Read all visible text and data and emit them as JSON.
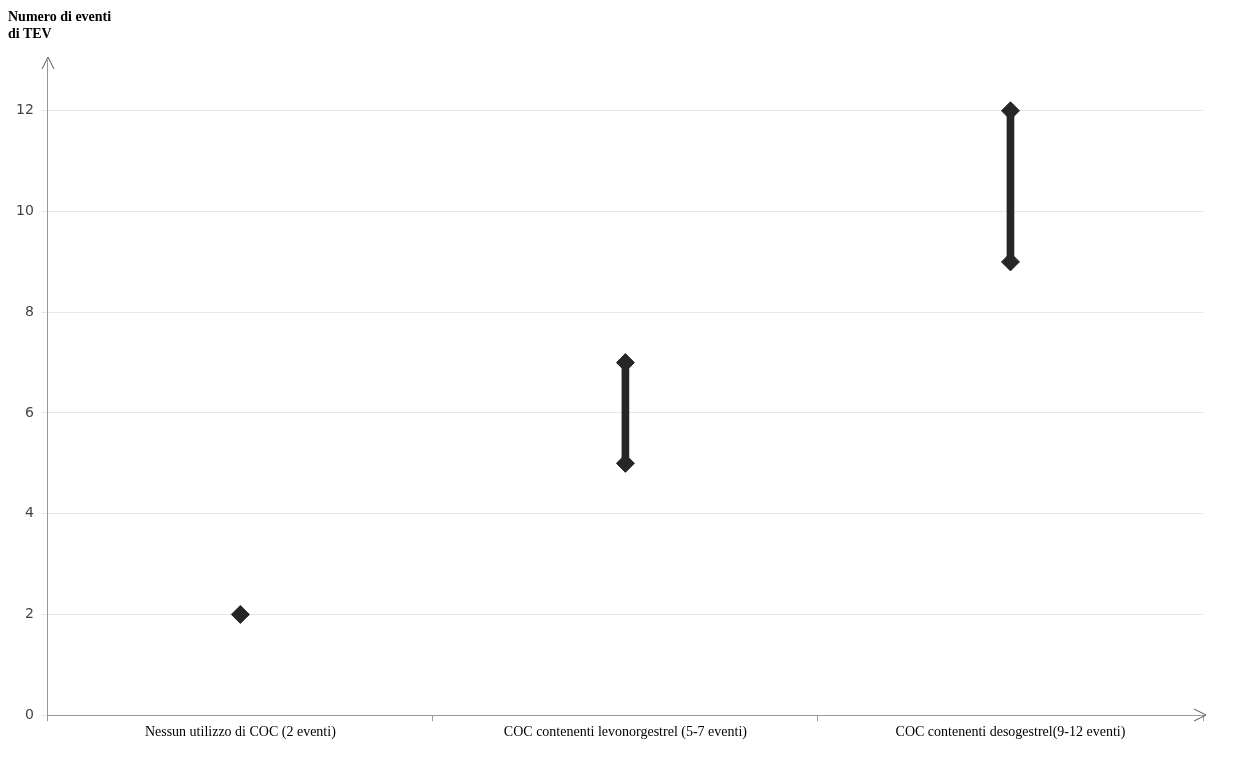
{
  "chart_data": {
    "type": "bar",
    "ylabel": "Numero di eventi di TEV",
    "categories": [
      "Nessun utilizzo di COC (2 eventi)",
      "COC contenenti levonorgestrel (5-7 eventi)",
      "COC contenenti desogestrel(9-12 eventi)"
    ],
    "series": [
      {
        "type": "bar",
        "color": "#262626",
        "base": [
          2,
          5,
          9
        ],
        "values": [
          0,
          2,
          3
        ]
      },
      {
        "type": "scatter",
        "color": "#262626",
        "marker": "diamond",
        "x": [
          "Nessun utilizzo di COC (2 eventi)",
          "COC contenenti levonorgestrel (5-7 eventi)",
          "COC contenenti desogestrel(9-12 eventi)"
        ],
        "values": [
          2,
          5,
          9
        ]
      },
      {
        "type": "scatter",
        "color": "#262626",
        "marker": "diamond",
        "x": [
          "Nessun utilizzo di COC (2 eventi)",
          "COC contenenti levonorgestrel (5-7 eventi)",
          "COC contenenti desogestrel(9-12 eventi)"
        ],
        "values": [
          null,
          7,
          12
        ]
      }
    ],
    "ylim": [
      0,
      13
    ],
    "yticks": [
      0,
      2,
      4,
      6,
      8,
      10,
      12
    ],
    "grid": "y",
    "legend": false
  }
}
